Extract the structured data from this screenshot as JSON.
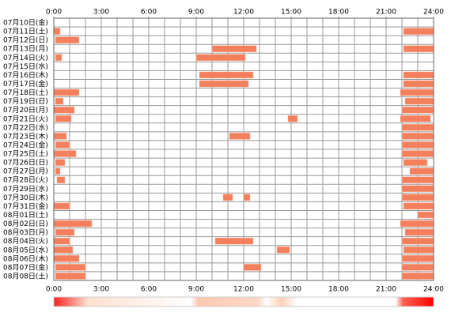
{
  "chart_data": {
    "type": "timeline",
    "xlim": [
      0,
      24
    ],
    "x_grid_step": 1,
    "xticks": [
      {
        "value": 0,
        "label": "0:00"
      },
      {
        "value": 3,
        "label": "3:00"
      },
      {
        "value": 6,
        "label": "6:00"
      },
      {
        "value": 9,
        "label": "9:00"
      },
      {
        "value": 12,
        "label": "12:00"
      },
      {
        "value": 15,
        "label": "15:00"
      },
      {
        "value": 18,
        "label": "18:00"
      },
      {
        "value": 21,
        "label": "21:00"
      },
      {
        "value": 24,
        "label": "24:00"
      }
    ],
    "color": "#f47f5c",
    "rows": [
      {
        "label": "07月10日(金)",
        "intervals": []
      },
      {
        "label": "07月11日(土)",
        "intervals": [
          [
            0,
            0.4
          ],
          [
            22.1,
            24
          ]
        ]
      },
      {
        "label": "07月12日(日)",
        "intervals": [
          [
            0.1,
            1.6
          ]
        ]
      },
      {
        "label": "07月13日(月)",
        "intervals": [
          [
            10,
            12.8
          ],
          [
            22.1,
            24
          ]
        ]
      },
      {
        "label": "07月14日(火)",
        "intervals": [
          [
            0.1,
            0.5
          ],
          [
            9,
            12.1
          ]
        ]
      },
      {
        "label": "07月15日(水)",
        "intervals": []
      },
      {
        "label": "07月16日(木)",
        "intervals": [
          [
            9.2,
            12.6
          ],
          [
            22.1,
            24
          ]
        ]
      },
      {
        "label": "07月17日(金)",
        "intervals": [
          [
            9.2,
            12.3
          ],
          [
            22.1,
            24
          ]
        ]
      },
      {
        "label": "07月18日(土)",
        "intervals": [
          [
            0,
            1.6
          ],
          [
            21.9,
            24
          ]
        ]
      },
      {
        "label": "07月19日(日)",
        "intervals": [
          [
            0.1,
            0.6
          ],
          [
            22.2,
            24
          ]
        ]
      },
      {
        "label": "07月20日(月)",
        "intervals": [
          [
            0,
            1.3
          ],
          [
            22,
            24
          ]
        ]
      },
      {
        "label": "07月21日(火)",
        "intervals": [
          [
            0.1,
            1.1
          ],
          [
            14.8,
            15.4
          ],
          [
            21.9,
            23.8
          ]
        ]
      },
      {
        "label": "07月22日(水)",
        "intervals": [
          [
            22,
            24
          ]
        ]
      },
      {
        "label": "07月23日(木)",
        "intervals": [
          [
            0,
            0.8
          ],
          [
            11.1,
            12.4
          ],
          [
            22,
            24
          ]
        ]
      },
      {
        "label": "07月24日(金)",
        "intervals": [
          [
            0.1,
            1
          ],
          [
            22,
            24
          ]
        ]
      },
      {
        "label": "07月25日(土)",
        "intervals": [
          [
            0,
            1.4
          ],
          [
            22,
            24
          ]
        ]
      },
      {
        "label": "07月26日(日)",
        "intervals": [
          [
            0.1,
            0.7
          ],
          [
            22.1,
            23.6
          ]
        ]
      },
      {
        "label": "07月27日(月)",
        "intervals": [
          [
            0.1,
            0.4
          ],
          [
            22.5,
            24
          ]
        ]
      },
      {
        "label": "07月28日(火)",
        "intervals": [
          [
            0.2,
            0.7
          ],
          [
            22,
            24
          ]
        ]
      },
      {
        "label": "07月29日(水)",
        "intervals": [
          [
            22,
            24
          ]
        ]
      },
      {
        "label": "07月30日(木)",
        "intervals": [
          [
            10.7,
            11.3
          ],
          [
            12,
            12.4
          ],
          [
            22,
            24
          ]
        ]
      },
      {
        "label": "07月31日(金)",
        "intervals": [
          [
            0,
            1
          ],
          [
            22.1,
            24
          ]
        ]
      },
      {
        "label": "08月01日(土)",
        "intervals": [
          [
            23,
            24
          ]
        ]
      },
      {
        "label": "08月02日(日)",
        "intervals": [
          [
            0,
            2.4
          ],
          [
            21.9,
            24
          ]
        ]
      },
      {
        "label": "08月03日(月)",
        "intervals": [
          [
            0.1,
            1.3
          ],
          [
            22.2,
            24
          ]
        ]
      },
      {
        "label": "08月04日(火)",
        "intervals": [
          [
            0,
            1
          ],
          [
            10.2,
            12.6
          ],
          [
            22,
            24
          ]
        ]
      },
      {
        "label": "08月05日(水)",
        "intervals": [
          [
            0,
            1.2
          ],
          [
            14.1,
            14.9
          ],
          [
            22.1,
            24
          ]
        ]
      },
      {
        "label": "08月06日(木)",
        "intervals": [
          [
            0,
            1.6
          ],
          [
            22,
            24
          ]
        ]
      },
      {
        "label": "08月07日(金)",
        "intervals": [
          [
            0.1,
            2
          ],
          [
            12,
            13.1
          ],
          [
            22,
            24
          ]
        ]
      },
      {
        "label": "08月08日(土)",
        "intervals": [
          [
            0.1,
            2
          ],
          [
            22,
            24
          ]
        ]
      }
    ]
  }
}
